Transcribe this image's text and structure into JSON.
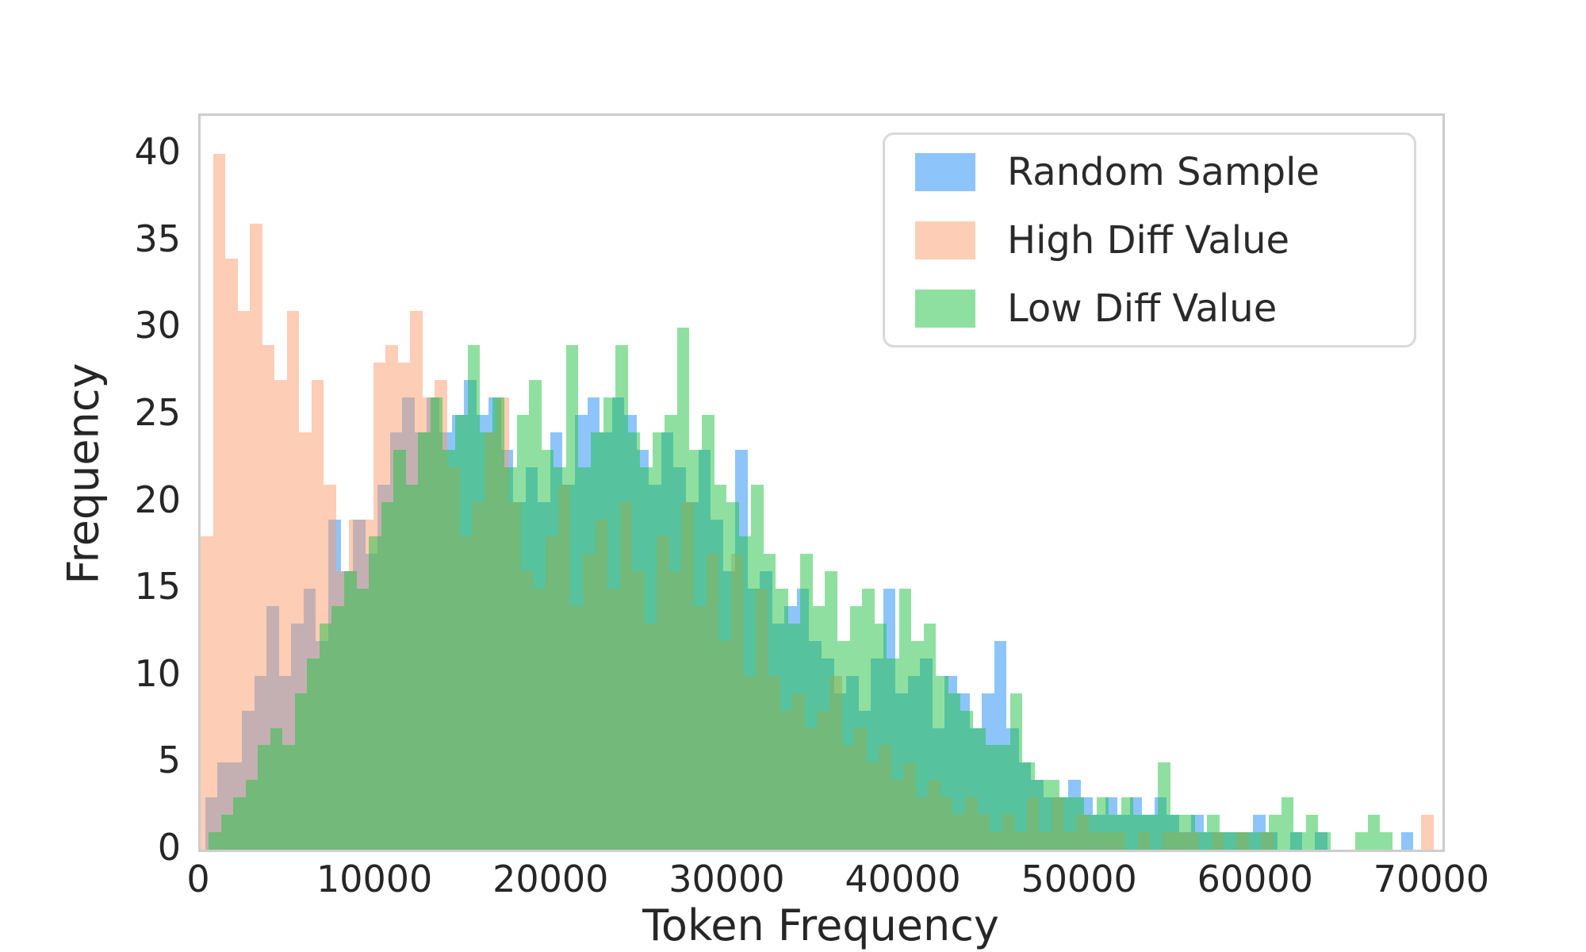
{
  "axes": {
    "xlabel": "Token Frequency",
    "ylabel": "Frequency",
    "x_ticks": [
      0,
      10000,
      20000,
      30000,
      40000,
      50000,
      60000,
      70000
    ],
    "y_ticks": [
      0,
      5,
      10,
      15,
      20,
      25,
      30,
      35,
      40
    ],
    "xlim": [
      0,
      70500
    ],
    "ylim": [
      0,
      42.2
    ],
    "grid": false
  },
  "legend": {
    "position": "upper right",
    "items": [
      {
        "label": "Random Sample",
        "color": "#8dc5fb"
      },
      {
        "label": "High Diff Value",
        "color": "#fdceb5"
      },
      {
        "label": "Low Diff Value",
        "color": "#8ee0a0"
      }
    ]
  },
  "chart_data": {
    "type": "bar",
    "subtype": "overlapping-histograms",
    "title": "",
    "xlabel": "Token Frequency",
    "ylabel": "Frequency",
    "xlim": [
      0,
      70500
    ],
    "ylim": [
      0,
      42.2
    ],
    "bin_width": 700,
    "legend_position": "upper right",
    "series": [
      {
        "name": "Random Sample",
        "legend_color": "#8dc5fb",
        "fill": "rgba(27,139,247,0.5)",
        "z": 1,
        "bin_offset": 250,
        "counts": [
          3,
          5,
          5,
          8,
          10,
          14,
          10,
          13,
          15,
          12,
          19,
          16,
          19,
          17,
          21,
          24,
          26,
          24,
          26,
          24,
          25,
          27,
          25,
          26,
          23,
          20,
          22,
          20,
          24,
          21,
          25,
          26,
          24,
          26,
          25,
          23,
          21,
          24,
          22,
          20,
          23,
          19,
          16,
          23,
          15,
          16,
          13,
          14,
          15,
          12,
          11,
          9,
          10,
          8,
          11,
          15,
          9,
          10,
          11,
          7,
          10,
          9,
          7,
          9,
          12,
          7,
          5,
          4,
          3,
          3,
          4,
          3,
          2,
          3,
          2,
          3,
          2,
          3,
          2,
          1,
          2,
          1,
          1,
          1,
          1,
          2,
          1,
          0,
          1,
          0,
          1,
          0,
          0,
          0,
          0,
          0,
          0,
          1,
          0,
          0
        ]
      },
      {
        "name": "High Diff Value",
        "legend_color": "#fdceb5",
        "fill": "rgba(251,155,107,0.5)",
        "z": 2,
        "bin_offset": 0,
        "counts": [
          18,
          40,
          34,
          31,
          36,
          29,
          27,
          31,
          24,
          27,
          21,
          16,
          19,
          19,
          28,
          29,
          28,
          31,
          26,
          27,
          22,
          18,
          20,
          24,
          26,
          20,
          16,
          15,
          18,
          21,
          14,
          17,
          19,
          15,
          20,
          16,
          13,
          18,
          16,
          20,
          14,
          17,
          12,
          17,
          10,
          15,
          10,
          8,
          9,
          7,
          8,
          10,
          6,
          7,
          5,
          6,
          4,
          5,
          3,
          4,
          3,
          2,
          3,
          2,
          1,
          2,
          1,
          3,
          1,
          3,
          1,
          2,
          1,
          1,
          1,
          0,
          1,
          0,
          1,
          1,
          1,
          0,
          1,
          0,
          1,
          0,
          1,
          0,
          0,
          0,
          0,
          0,
          0,
          0,
          0,
          0,
          0,
          0,
          0,
          2
        ]
      },
      {
        "name": "Low Diff Value",
        "legend_color": "#8ee0a0",
        "fill": "rgba(31,193,65,0.5)",
        "z": 3,
        "bin_offset": 450,
        "counts": [
          1,
          2,
          3,
          4,
          6,
          7,
          6,
          9,
          11,
          13,
          14,
          16,
          15,
          18,
          20,
          23,
          21,
          24,
          26,
          23,
          25,
          29,
          24,
          26,
          22,
          25,
          27,
          23,
          22,
          29,
          22,
          24,
          26,
          29,
          24,
          22,
          24,
          25,
          30,
          23,
          25,
          21,
          20,
          18,
          21,
          17,
          15,
          13,
          17,
          14,
          16,
          12,
          14,
          15,
          13,
          11,
          15,
          12,
          13,
          10,
          9,
          8,
          7,
          6,
          6,
          9,
          5,
          4,
          4,
          3,
          3,
          2,
          3,
          2,
          3,
          2,
          2,
          5,
          2,
          2,
          1,
          2,
          1,
          1,
          1,
          1,
          2,
          3,
          1,
          2,
          1,
          0,
          0,
          1,
          2,
          1,
          0,
          0,
          0,
          0
        ]
      }
    ]
  }
}
